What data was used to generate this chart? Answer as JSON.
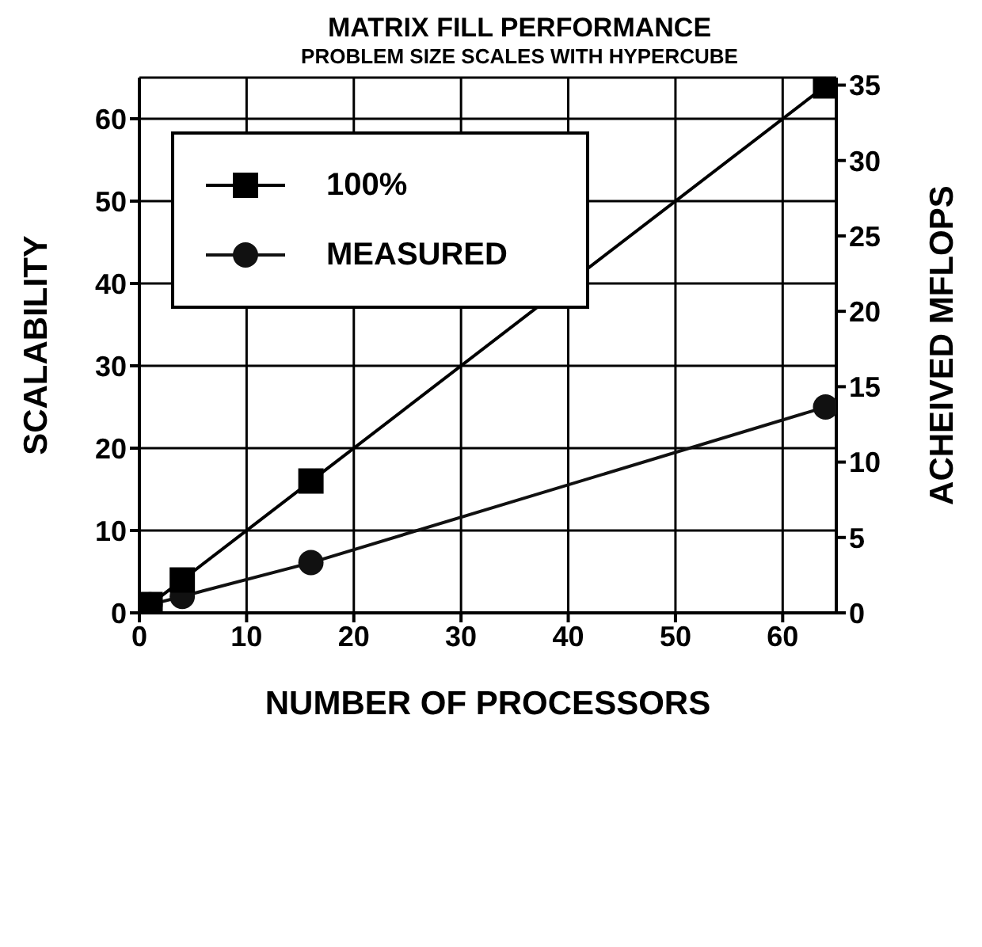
{
  "chart_data": {
    "type": "line",
    "title": "MATRIX FILL PERFORMANCE",
    "subtitle": "PROBLEM SIZE SCALES WITH HYPERCUBE",
    "xlabel": "NUMBER OF PROCESSORS",
    "ylabel": "SCALABILITY",
    "y2label": "ACHEIVED  MFLOPS",
    "x": [
      1,
      4,
      16,
      64
    ],
    "series": [
      {
        "name": "100%",
        "color": "#000000",
        "marker": "square",
        "values": [
          1,
          4,
          16,
          64
        ]
      },
      {
        "name": "MEASURED",
        "color": "#111111",
        "marker": "circle",
        "values": [
          1,
          2,
          6.1,
          25
        ]
      }
    ],
    "xlim": [
      0,
      65
    ],
    "xticks": [
      0,
      10,
      20,
      30,
      40,
      50,
      60
    ],
    "ylim": [
      0,
      65
    ],
    "yticks": [
      0,
      10,
      20,
      30,
      40,
      50,
      60
    ],
    "y2lim": [
      0,
      35.5
    ],
    "y2ticks": [
      0,
      5,
      10,
      15,
      20,
      25,
      30,
      35
    ],
    "grid": true,
    "legend": "top left",
    "line_style": "solid"
  }
}
